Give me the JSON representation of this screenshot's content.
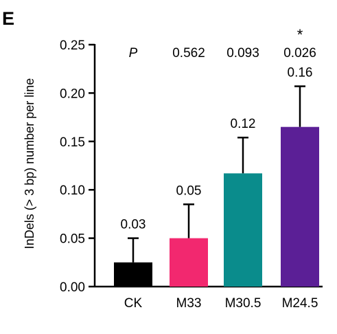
{
  "panel_label": "E",
  "chart_data": {
    "type": "bar",
    "categories": [
      "CK",
      "M33",
      "M30.5",
      "M24.5"
    ],
    "values": [
      0.025,
      0.05,
      0.117,
      0.165
    ],
    "errors": [
      0.025,
      0.035,
      0.037,
      0.042
    ],
    "value_labels": [
      "0.03",
      "0.05",
      "0.12",
      "0.16"
    ],
    "colors": [
      "#000000",
      "#f2286f",
      "#0a8c8c",
      "#5b1f96"
    ],
    "p_header": "P",
    "p_values": [
      "",
      "0.562",
      "0.093",
      "0.026"
    ],
    "significance": [
      "",
      "",
      "",
      "*"
    ],
    "ylabel": "InDels (> 3 bp) number per line",
    "xlabel": "",
    "ylim": [
      0,
      0.25
    ],
    "yticks": [
      "0.00",
      "0.05",
      "0.10",
      "0.15",
      "0.20",
      "0.25"
    ],
    "ytick_values": [
      0,
      0.05,
      0.1,
      0.15,
      0.2,
      0.25
    ],
    "grid": false
  }
}
